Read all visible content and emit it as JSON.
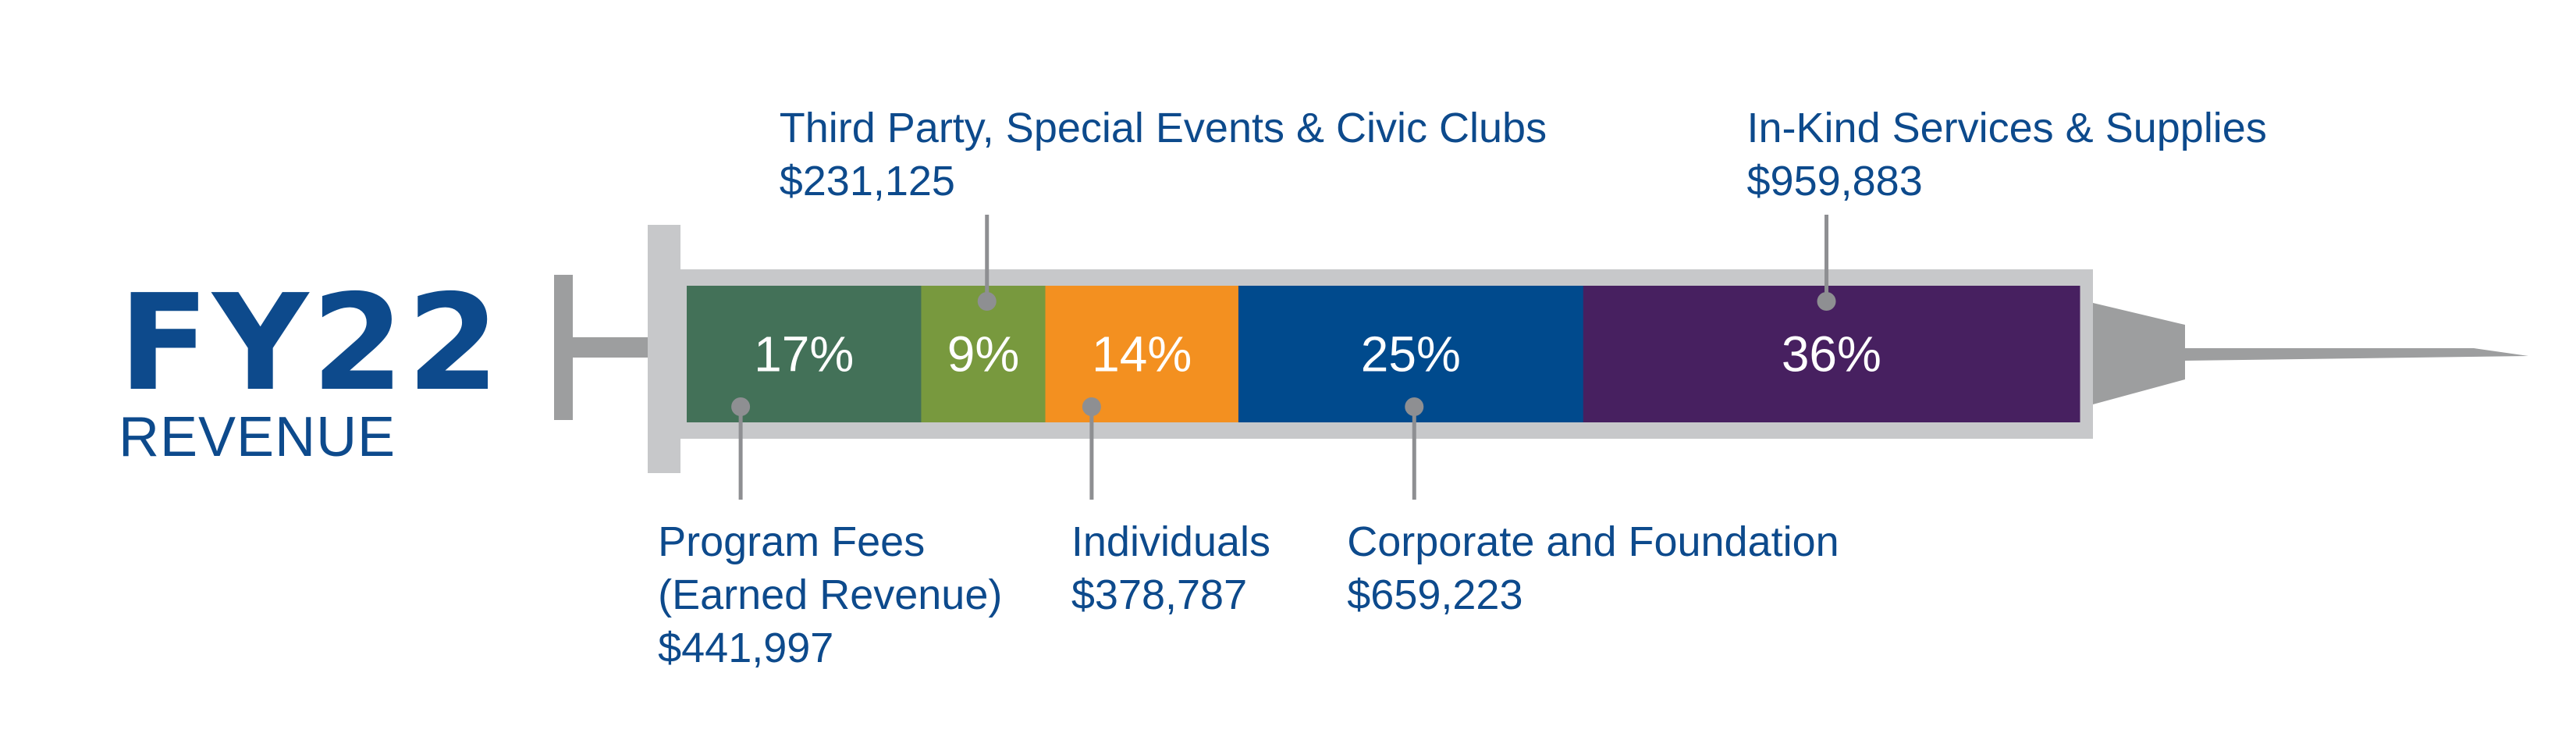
{
  "title": "FY22",
  "subtitle": "REVENUE",
  "chart_data": {
    "type": "bar",
    "orientation": "stacked-horizontal-100",
    "unit": "percent",
    "categories": [
      "Program Fees (Earned Revenue)",
      "Third Party, Special Events & Civic Clubs",
      "Individuals",
      "Corporate and Foundation",
      "In-Kind Services & Supplies"
    ],
    "values": [
      17,
      9,
      14,
      25,
      36
    ],
    "value_labels": [
      "17%",
      "9%",
      "14%",
      "25%",
      "36%"
    ],
    "segments": [
      {
        "label_lines": [
          "Program Fees",
          "(Earned Revenue)"
        ],
        "amount": "$441,997",
        "position": "below",
        "color": "#437158"
      },
      {
        "label_lines": [
          "Third Party, Special Events & Civic Clubs"
        ],
        "amount": "$231,125",
        "position": "above",
        "color": "#78993e"
      },
      {
        "label_lines": [
          "Individuals"
        ],
        "amount": "$378,787",
        "position": "below",
        "color": "#f39020"
      },
      {
        "label_lines": [
          "Corporate and Foundation"
        ],
        "amount": "$659,223",
        "position": "below",
        "color": "#004a8d"
      },
      {
        "label_lines": [
          "In-Kind Services & Supplies"
        ],
        "amount": "$959,883",
        "position": "above",
        "color": "#472060"
      }
    ],
    "colors": {
      "text": "#0d4a8c",
      "syringe": "#c7c8ca",
      "needle": "#9d9e9f",
      "leader": "#8e8f92"
    }
  }
}
